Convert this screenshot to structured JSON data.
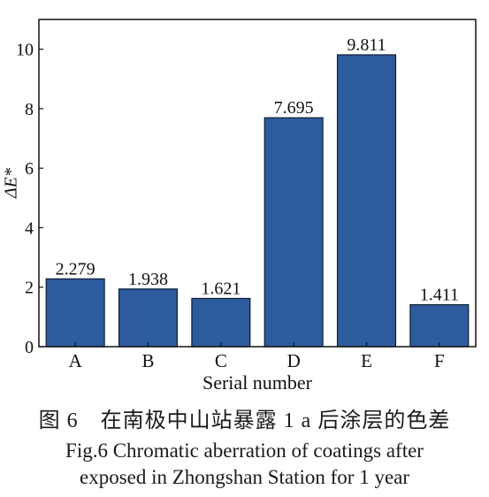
{
  "chart_data": {
    "type": "bar",
    "categories": [
      "A",
      "B",
      "C",
      "D",
      "E",
      "F"
    ],
    "values": [
      2.279,
      1.938,
      1.621,
      7.695,
      9.811,
      1.411
    ],
    "value_labels": [
      "2.279",
      "1.938",
      "1.621",
      "7.695",
      "9.811",
      "1.411"
    ],
    "xlabel": "Serial number",
    "ylabel": "ΔE*",
    "ylim": [
      0,
      11
    ],
    "yticks": [
      0,
      2,
      4,
      6,
      8,
      10
    ],
    "bar_color": "#2d5c9e",
    "grid": false
  },
  "caption": {
    "cn": "图 6　在南极中山站暴露 1 a 后涂层的色差",
    "en_line1": "Fig.6 Chromatic aberration of coatings after",
    "en_line2": "exposed in Zhongshan Station for 1 year"
  }
}
